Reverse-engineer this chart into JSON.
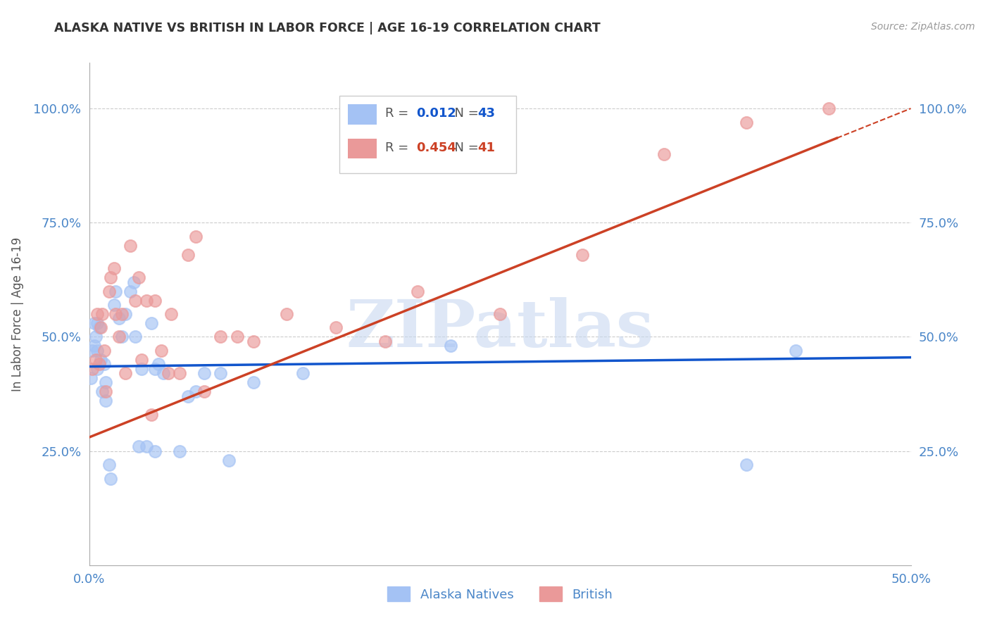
{
  "title": "ALASKA NATIVE VS BRITISH IN LABOR FORCE | AGE 16-19 CORRELATION CHART",
  "source": "Source: ZipAtlas.com",
  "ylabel": "In Labor Force | Age 16-19",
  "xlim": [
    0.0,
    0.5
  ],
  "ylim": [
    0.0,
    1.1
  ],
  "yticks": [
    0.25,
    0.5,
    0.75,
    1.0
  ],
  "ytick_labels": [
    "25.0%",
    "50.0%",
    "75.0%",
    "100.0%"
  ],
  "xticks": [
    0.0,
    0.1,
    0.2,
    0.3,
    0.4,
    0.5
  ],
  "xtick_labels": [
    "0.0%",
    "",
    "",
    "",
    "",
    "50.0%"
  ],
  "alaska_R": 0.012,
  "alaska_N": 43,
  "british_R": 0.454,
  "british_N": 41,
  "alaska_color": "#a4c2f4",
  "british_color": "#ea9999",
  "alaska_line_color": "#1155cc",
  "british_line_color": "#cc4125",
  "alaska_line_y0": 0.435,
  "alaska_line_y1": 0.455,
  "british_line_y0": 0.28,
  "british_line_y1": 1.0,
  "watermark_text": "ZIPatlas",
  "alaska_x": [
    0.001,
    0.002,
    0.003,
    0.003,
    0.004,
    0.005,
    0.005,
    0.005,
    0.006,
    0.007,
    0.008,
    0.009,
    0.01,
    0.01,
    0.012,
    0.013,
    0.015,
    0.016,
    0.018,
    0.02,
    0.022,
    0.025,
    0.027,
    0.028,
    0.03,
    0.032,
    0.035,
    0.038,
    0.04,
    0.04,
    0.042,
    0.045,
    0.055,
    0.06,
    0.065,
    0.07,
    0.08,
    0.085,
    0.1,
    0.13,
    0.22,
    0.4,
    0.43
  ],
  "alaska_y": [
    0.41,
    0.47,
    0.48,
    0.53,
    0.5,
    0.47,
    0.53,
    0.43,
    0.52,
    0.45,
    0.38,
    0.44,
    0.4,
    0.36,
    0.22,
    0.19,
    0.57,
    0.6,
    0.54,
    0.5,
    0.55,
    0.6,
    0.62,
    0.5,
    0.26,
    0.43,
    0.26,
    0.53,
    0.25,
    0.43,
    0.44,
    0.42,
    0.25,
    0.37,
    0.38,
    0.42,
    0.42,
    0.23,
    0.4,
    0.42,
    0.48,
    0.22,
    0.47
  ],
  "british_x": [
    0.002,
    0.004,
    0.005,
    0.006,
    0.007,
    0.008,
    0.009,
    0.01,
    0.012,
    0.013,
    0.015,
    0.016,
    0.018,
    0.02,
    0.022,
    0.025,
    0.028,
    0.03,
    0.032,
    0.035,
    0.038,
    0.04,
    0.044,
    0.048,
    0.05,
    0.055,
    0.06,
    0.065,
    0.07,
    0.08,
    0.09,
    0.1,
    0.12,
    0.15,
    0.18,
    0.2,
    0.25,
    0.3,
    0.35,
    0.4,
    0.45
  ],
  "british_y": [
    0.43,
    0.45,
    0.55,
    0.44,
    0.52,
    0.55,
    0.47,
    0.38,
    0.6,
    0.63,
    0.65,
    0.55,
    0.5,
    0.55,
    0.42,
    0.7,
    0.58,
    0.63,
    0.45,
    0.58,
    0.33,
    0.58,
    0.47,
    0.42,
    0.55,
    0.42,
    0.68,
    0.72,
    0.38,
    0.5,
    0.5,
    0.49,
    0.55,
    0.52,
    0.49,
    0.6,
    0.55,
    0.68,
    0.9,
    0.97,
    1.0
  ]
}
